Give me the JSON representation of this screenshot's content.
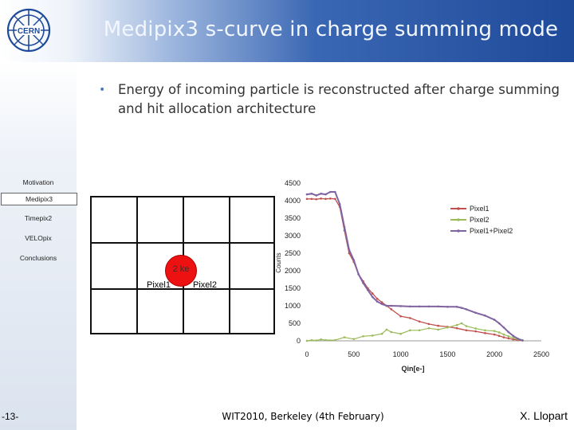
{
  "header": {
    "title": "Medipix3 s-curve in charge summing mode"
  },
  "logo": {
    "text": "CERN"
  },
  "bullet": "Energy of incoming particle is reconstructed after charge summing and hit allocation architecture",
  "sidebar": {
    "items": [
      "Motivation",
      "Medipix3",
      "Timepix2",
      "VELOpix",
      "Conclusions"
    ],
    "active_index": 1
  },
  "diagram": {
    "charge_label": "2 ke",
    "pixel1_label": "Pixel1",
    "pixel2_label": "Pixel2"
  },
  "footer": {
    "page": "-13-",
    "event": "WIT2010, Berkeley (4th February)",
    "author": "X. Llopart"
  },
  "colors": {
    "pixel1": "#c0504d",
    "pixel2": "#9bbb59",
    "sum": "#8064a2",
    "accent": "#4b7bc4"
  },
  "chart_data": {
    "type": "line",
    "xlabel": "Qin[e-]",
    "ylabel": "Counts",
    "xlim": [
      0,
      2500
    ],
    "ylim": [
      0,
      4500
    ],
    "xticks": [
      0,
      500,
      1000,
      1500,
      2000,
      2500
    ],
    "yticks": [
      0,
      500,
      1000,
      1500,
      2000,
      2500,
      3000,
      3500,
      4000,
      4500
    ],
    "legend_position": "right",
    "series": [
      {
        "name": "Pixel1",
        "x": [
          0,
          50,
          100,
          150,
          200,
          250,
          300,
          350,
          400,
          450,
          500,
          550,
          600,
          650,
          700,
          750,
          800,
          850,
          900,
          1000,
          1100,
          1200,
          1300,
          1400,
          1500,
          1600,
          1700,
          1800,
          1900,
          2000,
          2050,
          2100,
          2150,
          2200,
          2250,
          2300
        ],
        "values": [
          4050,
          4050,
          4040,
          4060,
          4050,
          4060,
          4050,
          3820,
          3150,
          2500,
          2250,
          1900,
          1700,
          1500,
          1350,
          1200,
          1100,
          1000,
          900,
          700,
          650,
          550,
          480,
          430,
          400,
          360,
          300,
          270,
          220,
          180,
          140,
          100,
          70,
          40,
          20,
          10
        ]
      },
      {
        "name": "Pixel2",
        "x": [
          0,
          50,
          100,
          150,
          200,
          300,
          400,
          500,
          600,
          700,
          800,
          850,
          900,
          1000,
          1100,
          1200,
          1300,
          1400,
          1500,
          1600,
          1650,
          1700,
          1800,
          1900,
          2000,
          2050,
          2100,
          2150,
          2200,
          2250,
          2300
        ],
        "values": [
          0,
          20,
          10,
          40,
          20,
          20,
          100,
          50,
          130,
          150,
          200,
          320,
          250,
          200,
          300,
          300,
          360,
          320,
          380,
          450,
          500,
          420,
          350,
          300,
          280,
          240,
          180,
          130,
          80,
          40,
          20
        ]
      },
      {
        "name": "Pixel1+Pixel2",
        "x": [
          0,
          50,
          100,
          150,
          200,
          250,
          300,
          350,
          400,
          450,
          500,
          550,
          600,
          650,
          700,
          750,
          800,
          850,
          900,
          1000,
          1100,
          1200,
          1300,
          1400,
          1500,
          1600,
          1650,
          1700,
          1800,
          1900,
          2000,
          2050,
          2100,
          2150,
          2200,
          2250,
          2300
        ],
        "values": [
          4180,
          4200,
          4150,
          4200,
          4180,
          4250,
          4250,
          3900,
          3250,
          2600,
          2300,
          1900,
          1650,
          1450,
          1250,
          1120,
          1050,
          1000,
          1000,
          990,
          980,
          980,
          980,
          980,
          970,
          970,
          940,
          900,
          800,
          720,
          600,
          500,
          380,
          250,
          140,
          60,
          10
        ]
      }
    ]
  }
}
